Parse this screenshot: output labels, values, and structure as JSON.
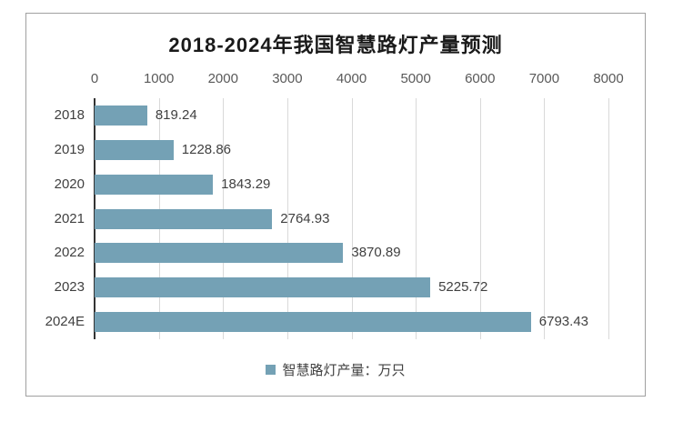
{
  "chart_data": {
    "type": "bar",
    "orientation": "horizontal",
    "title": "2018-2024年我国智慧路灯产量预测",
    "categories": [
      "2018",
      "2019",
      "2020",
      "2021",
      "2022",
      "2023",
      "2024E"
    ],
    "values": [
      819.24,
      1228.86,
      1843.29,
      2764.93,
      3870.89,
      5225.72,
      6793.43
    ],
    "series_name": "智慧路灯产量：万只",
    "xlim": [
      0,
      8000
    ],
    "xticks": [
      0,
      1000,
      2000,
      3000,
      4000,
      5000,
      6000,
      7000,
      8000
    ],
    "value_axis_position": "top",
    "legend_position": "bottom",
    "grid": "vertical",
    "data_labels": true,
    "value_decimals": 2
  },
  "colors": {
    "bar": "#74A1B5",
    "gridline": "#D9D9D9",
    "axis_line": "#333333",
    "panel_border": "#A0A0A0",
    "title_text": "#1A1A1A",
    "label_text": "#404040",
    "tick_text": "#595959"
  }
}
